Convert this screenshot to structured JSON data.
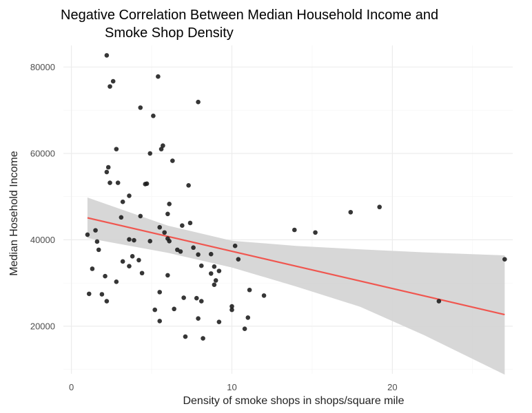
{
  "chart_data": {
    "type": "scatter",
    "title_lines": [
      "Negative Correlation Between Median Household Income and",
      "Smoke Shop Density"
    ],
    "xlabel": "Density of smoke shops in shops/square mile",
    "ylabel": "Median Hosehold Income",
    "xlim": [
      -0.5,
      27.5
    ],
    "ylim": [
      9000,
      85000
    ],
    "x_ticks": [
      0,
      10,
      20
    ],
    "y_ticks": [
      20000,
      40000,
      60000,
      80000
    ],
    "x_tick_labels": [
      "0",
      "10",
      "20"
    ],
    "y_tick_labels": [
      "20000",
      "40000",
      "60000",
      "80000"
    ],
    "grid": true,
    "legend": "none",
    "point_color": "#1a1a1a",
    "trend_color": "#f0564f",
    "band_color": "#d3d3d3",
    "trend_line": {
      "x": [
        1.0,
        27.0
      ],
      "y": [
        45100,
        22700
      ]
    },
    "confidence_band": {
      "x": [
        1.0,
        6.0,
        10.0,
        14.0,
        18.0,
        22.0,
        27.0
      ],
      "upper": [
        49800,
        43300,
        39800,
        38600,
        37800,
        37100,
        36400
      ],
      "lower": [
        40400,
        37000,
        33600,
        29200,
        24500,
        17900,
        8800
      ]
    },
    "points": [
      {
        "x": 2.2,
        "y": 82700
      },
      {
        "x": 5.4,
        "y": 77800
      },
      {
        "x": 2.6,
        "y": 76700
      },
      {
        "x": 2.4,
        "y": 75500
      },
      {
        "x": 7.9,
        "y": 71900
      },
      {
        "x": 4.3,
        "y": 70600
      },
      {
        "x": 5.1,
        "y": 68700
      },
      {
        "x": 5.7,
        "y": 61800
      },
      {
        "x": 2.8,
        "y": 61000
      },
      {
        "x": 5.6,
        "y": 61000
      },
      {
        "x": 4.9,
        "y": 60000
      },
      {
        "x": 6.3,
        "y": 58300
      },
      {
        "x": 2.3,
        "y": 56800
      },
      {
        "x": 2.2,
        "y": 55700
      },
      {
        "x": 2.4,
        "y": 53200
      },
      {
        "x": 2.9,
        "y": 53200
      },
      {
        "x": 4.6,
        "y": 52900
      },
      {
        "x": 4.7,
        "y": 53000
      },
      {
        "x": 7.3,
        "y": 52600
      },
      {
        "x": 3.6,
        "y": 50200
      },
      {
        "x": 3.2,
        "y": 48800
      },
      {
        "x": 6.1,
        "y": 48300
      },
      {
        "x": 6.0,
        "y": 46000
      },
      {
        "x": 4.3,
        "y": 45500
      },
      {
        "x": 3.1,
        "y": 45200
      },
      {
        "x": 7.4,
        "y": 43900
      },
      {
        "x": 6.9,
        "y": 43300
      },
      {
        "x": 5.5,
        "y": 42900
      },
      {
        "x": 1.5,
        "y": 42200
      },
      {
        "x": 5.8,
        "y": 41700
      },
      {
        "x": 1.0,
        "y": 41200
      },
      {
        "x": 6.0,
        "y": 40300
      },
      {
        "x": 3.6,
        "y": 40100
      },
      {
        "x": 3.9,
        "y": 39900
      },
      {
        "x": 6.1,
        "y": 39700
      },
      {
        "x": 1.6,
        "y": 39600
      },
      {
        "x": 4.9,
        "y": 39700
      },
      {
        "x": 7.6,
        "y": 38200
      },
      {
        "x": 10.2,
        "y": 38600
      },
      {
        "x": 1.7,
        "y": 37700
      },
      {
        "x": 6.6,
        "y": 37700
      },
      {
        "x": 6.8,
        "y": 37300
      },
      {
        "x": 8.7,
        "y": 36700
      },
      {
        "x": 7.9,
        "y": 36600
      },
      {
        "x": 3.8,
        "y": 36200
      },
      {
        "x": 10.4,
        "y": 35500
      },
      {
        "x": 4.2,
        "y": 35300
      },
      {
        "x": 3.2,
        "y": 35000
      },
      {
        "x": 8.1,
        "y": 34000
      },
      {
        "x": 3.6,
        "y": 33900
      },
      {
        "x": 8.9,
        "y": 33800
      },
      {
        "x": 1.3,
        "y": 33300
      },
      {
        "x": 9.2,
        "y": 32800
      },
      {
        "x": 8.7,
        "y": 32200
      },
      {
        "x": 4.4,
        "y": 32300
      },
      {
        "x": 6.0,
        "y": 31800
      },
      {
        "x": 2.1,
        "y": 31600
      },
      {
        "x": 9.0,
        "y": 30600
      },
      {
        "x": 2.8,
        "y": 30300
      },
      {
        "x": 8.9,
        "y": 29600
      },
      {
        "x": 11.1,
        "y": 28400
      },
      {
        "x": 5.5,
        "y": 27900
      },
      {
        "x": 1.1,
        "y": 27500
      },
      {
        "x": 1.9,
        "y": 27400
      },
      {
        "x": 12.0,
        "y": 27100
      },
      {
        "x": 7.0,
        "y": 26600
      },
      {
        "x": 7.8,
        "y": 26500
      },
      {
        "x": 8.1,
        "y": 25800
      },
      {
        "x": 2.2,
        "y": 25800
      },
      {
        "x": 22.9,
        "y": 25800
      },
      {
        "x": 10.0,
        "y": 24600
      },
      {
        "x": 10.0,
        "y": 23800
      },
      {
        "x": 5.2,
        "y": 23800
      },
      {
        "x": 6.4,
        "y": 24000
      },
      {
        "x": 11.0,
        "y": 22000
      },
      {
        "x": 7.9,
        "y": 21800
      },
      {
        "x": 5.5,
        "y": 21200
      },
      {
        "x": 9.2,
        "y": 21000
      },
      {
        "x": 10.8,
        "y": 19400
      },
      {
        "x": 7.1,
        "y": 17600
      },
      {
        "x": 8.2,
        "y": 17200
      },
      {
        "x": 13.9,
        "y": 42300
      },
      {
        "x": 15.2,
        "y": 41700
      },
      {
        "x": 17.4,
        "y": 46400
      },
      {
        "x": 19.2,
        "y": 47600
      },
      {
        "x": 27.0,
        "y": 35500
      }
    ]
  }
}
